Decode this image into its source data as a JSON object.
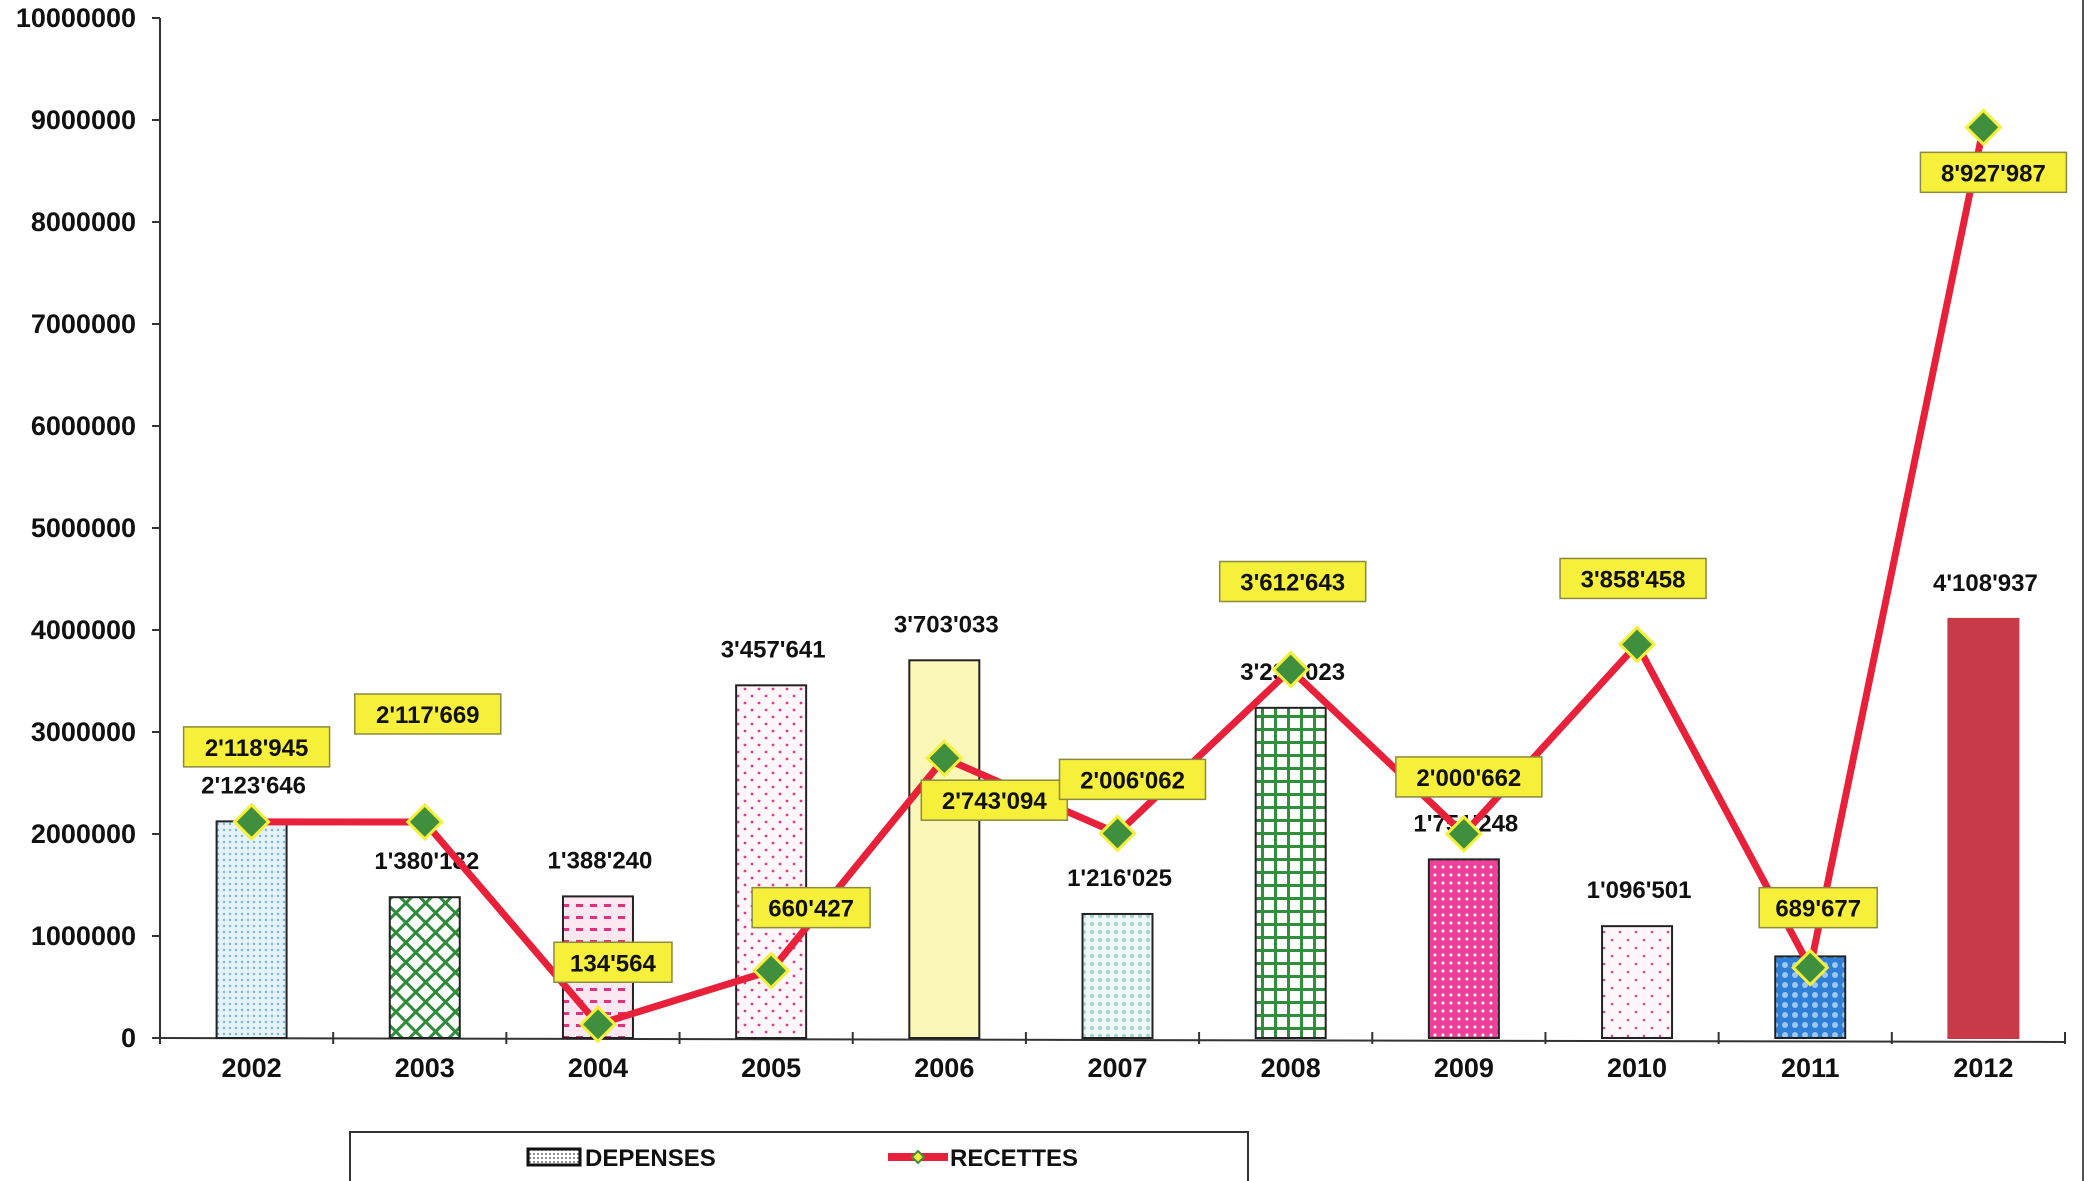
{
  "chart_data": {
    "type": "bar",
    "categories": [
      "2002",
      "2003",
      "2004",
      "2005",
      "2006",
      "2007",
      "2008",
      "2009",
      "2010",
      "2011",
      "2012"
    ],
    "ylim": [
      0,
      10000000
    ],
    "yticks": [
      "0",
      "1000000",
      "2000000",
      "3000000",
      "4000000",
      "5000000",
      "6000000",
      "7000000",
      "8000000",
      "9000000",
      "10000000"
    ],
    "grid": false,
    "legend_position": "bottom",
    "series": [
      {
        "name": "DEPENSES",
        "type": "bar",
        "values": [
          2123646,
          1380182,
          1388240,
          3457641,
          3703033,
          1216025,
          3237023,
          1751248,
          1096501,
          800000,
          4108937
        ],
        "labels": [
          "2'123'646",
          "1'380'182",
          "1'388'240",
          "3'457'641",
          "3'703'033",
          "1'216'025",
          "3'237'023",
          "1'751'248",
          "1'096'501",
          "",
          "4'108'937"
        ],
        "fills": [
          "#cfe6f2",
          "#ffffff",
          "#f7c6dc",
          "#fff4f8",
          "#fbf7b8",
          "#ddf1ee",
          "#ffffff",
          "#ee3f9a",
          "#fff6fa",
          "#3a86d8",
          "#c83a47"
        ],
        "strokes": [
          "#222222",
          "#222222",
          "#222222",
          "#222222",
          "#222222",
          "#222222",
          "#222222",
          "#222222",
          "#222222",
          "#222222",
          "#c83a47"
        ]
      },
      {
        "name": "RECETTES",
        "type": "line",
        "color": "#e8203a",
        "marker_color": "#3f8f3f",
        "values": [
          2118945,
          2117669,
          134564,
          660427,
          2743094,
          2006062,
          3612643,
          2000662,
          3858458,
          689677,
          8927987
        ],
        "labels": [
          "2'118'945",
          "2'117'669",
          "134'564",
          "660'427",
          "2'743'094",
          "2'006'062",
          "3'612'643",
          "2'000'662",
          "3'858'458",
          "689'677",
          "8'927'987"
        ],
        "label_fill": "#f6f03a"
      }
    ]
  }
}
